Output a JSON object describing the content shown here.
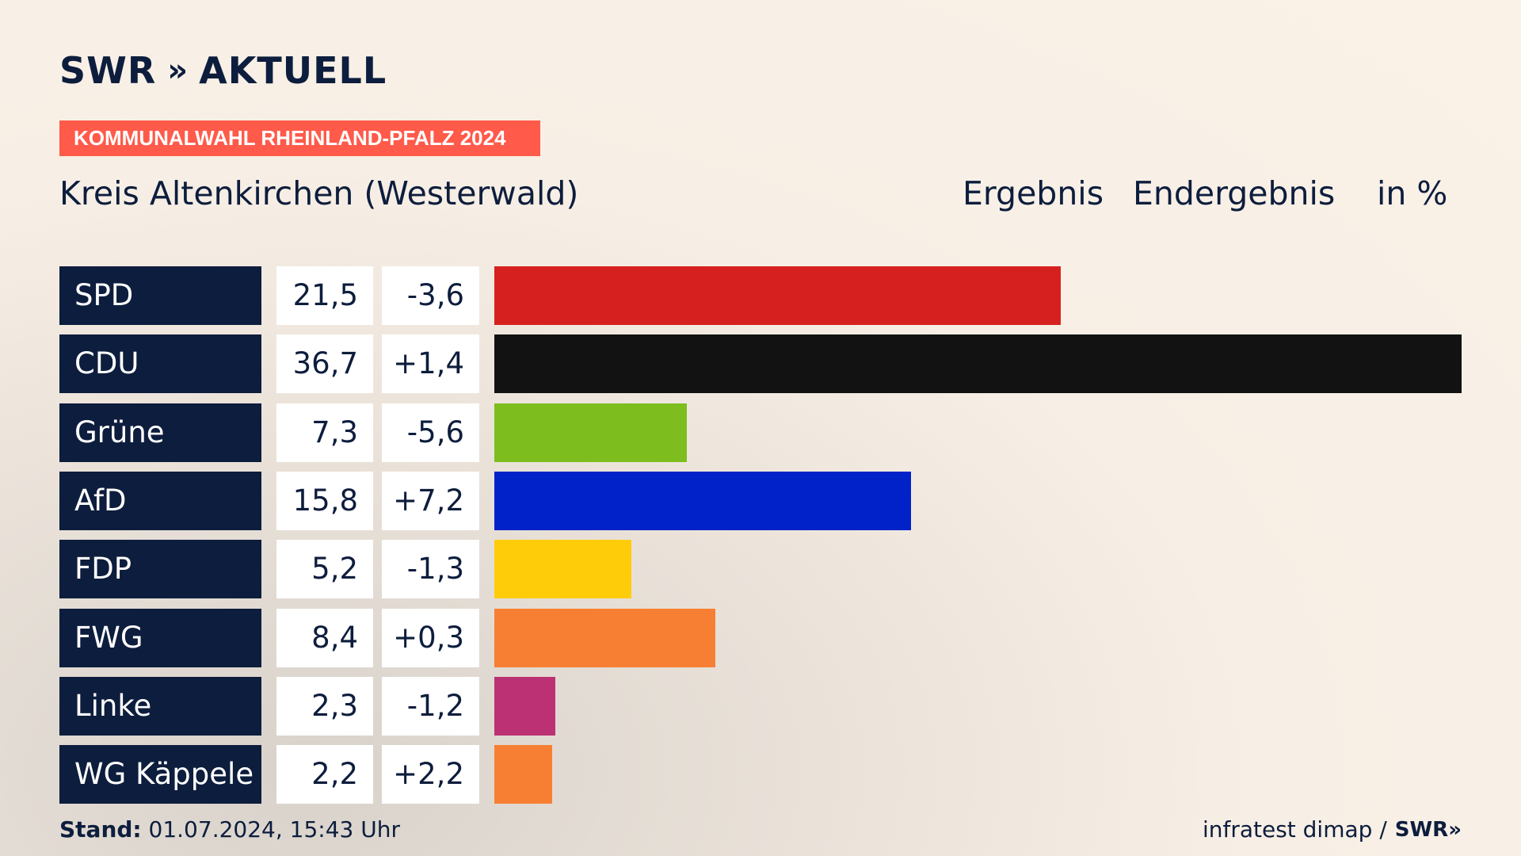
{
  "brand": {
    "name": "SWR",
    "chevrons": "»",
    "product": "AKTUELL"
  },
  "badge": "KOMMUNALWAHL RHEINLAND-PFALZ 2024",
  "header": {
    "region": "Kreis Altenkirchen (Westerwald)",
    "col1": "Ergebnis",
    "col2": "Endergebnis",
    "col3": "in %"
  },
  "chart_data": {
    "type": "bar",
    "orientation": "horizontal",
    "categories": [
      "SPD",
      "CDU",
      "Grüne",
      "AfD",
      "FDP",
      "FWG",
      "Linke",
      "WG Käppele"
    ],
    "values": [
      21.5,
      36.7,
      7.3,
      15.8,
      5.2,
      8.4,
      2.3,
      2.2
    ],
    "value_labels": [
      "21,5",
      "36,7",
      "7,3",
      "15,8",
      "5,2",
      "8,4",
      "2,3",
      "2,2"
    ],
    "diffs": [
      -3.6,
      1.4,
      -5.6,
      7.2,
      -1.3,
      0.3,
      -1.2,
      2.2
    ],
    "diff_labels": [
      "-3,6",
      "+1,4",
      "-5,6",
      "+7,2",
      "-1,3",
      "+0,3",
      "-1,2",
      "+2,2"
    ],
    "colors": [
      "#d62020",
      "#121212",
      "#7dbd1e",
      "#0022c8",
      "#ffcc0a",
      "#f77f33",
      "#bc3173",
      "#f77f33"
    ],
    "xlim": [
      0,
      36.7
    ]
  },
  "footer": {
    "stand_label": "Stand:",
    "stand_value": "01.07.2024, 15:43 Uhr",
    "source": "infratest dimap /",
    "source_brand": "SWR»"
  }
}
